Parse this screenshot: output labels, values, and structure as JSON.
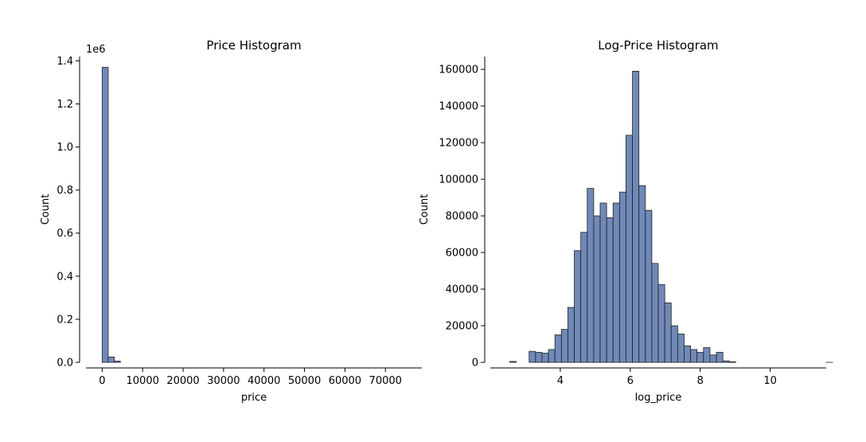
{
  "style": {
    "bar_fill": "#7089b8",
    "bar_edge": "#1f1f1f",
    "axis_color": "#000000"
  },
  "chart_data": [
    {
      "type": "bar",
      "title": "Price Histogram",
      "xlabel": "price",
      "ylabel": "Count",
      "y_offset_label": "1e6",
      "xlim": [
        -4000,
        79000
      ],
      "ylim": [
        0,
        1.42
      ],
      "xticks": [
        0,
        10000,
        20000,
        30000,
        40000,
        50000,
        60000,
        70000
      ],
      "xtick_labels": [
        "0",
        "10000",
        "20000",
        "30000",
        "40000",
        "50000",
        "60000",
        "70000"
      ],
      "yticks": [
        0,
        0.2,
        0.4,
        0.6,
        0.8,
        1.0,
        1.2,
        1.4
      ],
      "ytick_labels": [
        "0.0",
        "0.2",
        "0.4",
        "0.6",
        "0.8",
        "1.0",
        "1.2",
        "1.4"
      ],
      "bin_edges": [
        0,
        1500,
        3000,
        4500
      ],
      "values": [
        1.37,
        0.025,
        0.006
      ],
      "grid": false
    },
    {
      "type": "bar",
      "title": "Log-Price Histogram",
      "xlabel": "log_price",
      "ylabel": "Count",
      "xlim": [
        2.0,
        11.6
      ],
      "ylim": [
        0,
        167000
      ],
      "xticks": [
        4,
        6,
        8,
        10
      ],
      "xtick_labels": [
        "4",
        "6",
        "8",
        "10"
      ],
      "yticks": [
        0,
        20000,
        40000,
        60000,
        80000,
        100000,
        120000,
        140000,
        160000
      ],
      "ytick_labels": [
        "0",
        "20000",
        "40000",
        "60000",
        "80000",
        "100000",
        "120000",
        "140000",
        "160000"
      ],
      "bin_start": 2.555,
      "bin_width": 0.1846,
      "values": [
        500,
        0,
        0,
        6000,
        5500,
        5000,
        7000,
        15000,
        18000,
        30000,
        61000,
        71000,
        95000,
        80000,
        87000,
        79000,
        87000,
        93000,
        124000,
        159000,
        96500,
        83000,
        54000,
        42500,
        32500,
        20000,
        15500,
        9000,
        7000,
        5500,
        8000,
        4000,
        5500,
        800,
        300,
        0,
        0,
        0,
        0,
        0,
        0,
        0,
        0,
        0,
        0,
        0,
        0,
        0,
        0,
        20
      ],
      "grid": false
    }
  ]
}
